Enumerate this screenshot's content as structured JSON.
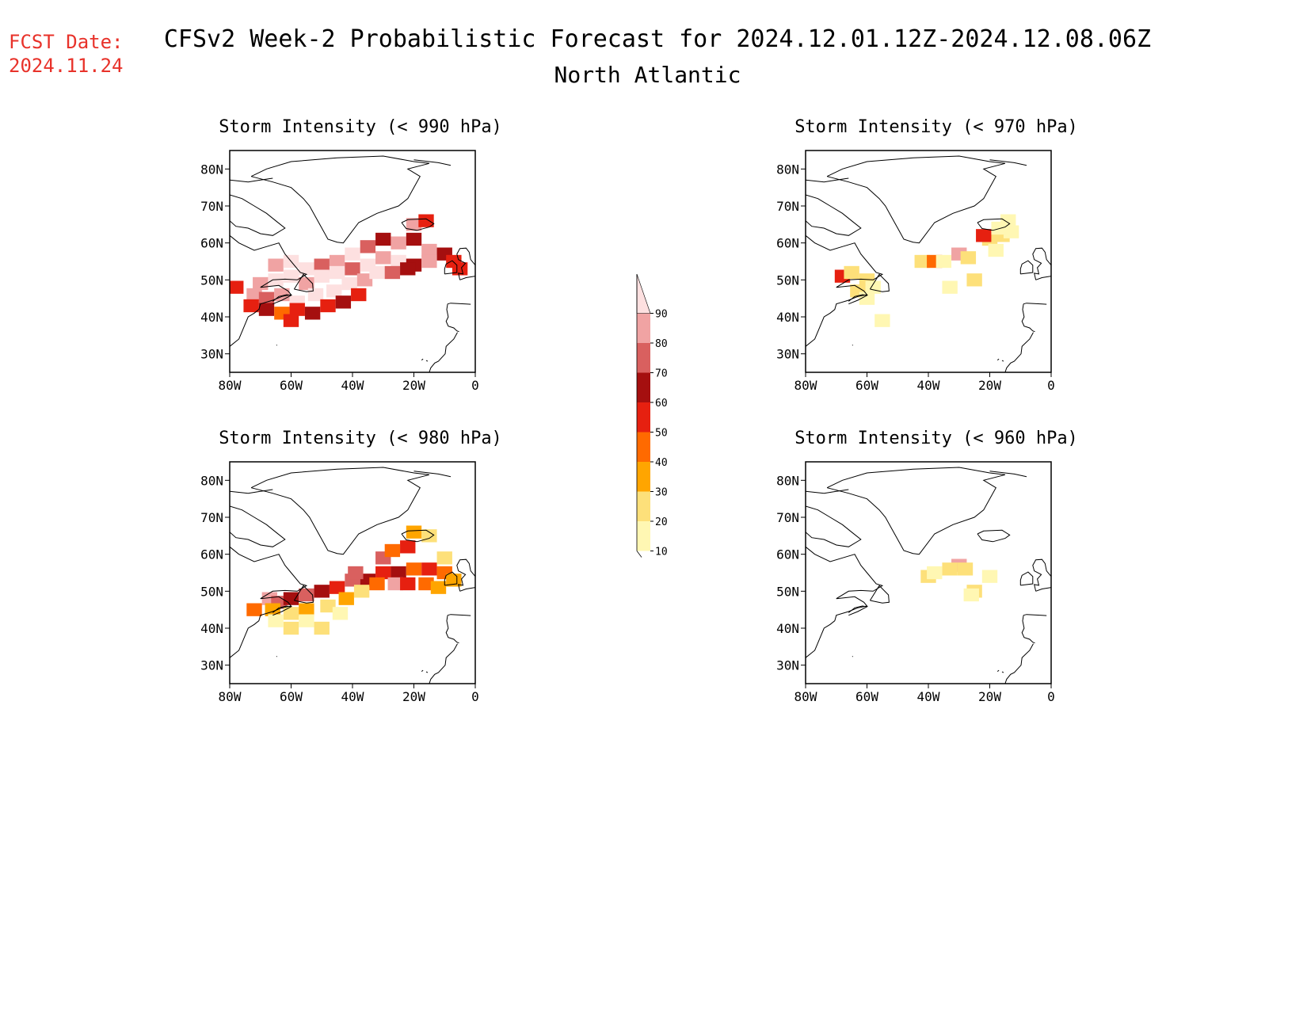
{
  "header": {
    "fcst_label": "FCST Date:",
    "fcst_date": "2024.11.24",
    "title": "CFSv2 Week-2 Probabilistic Forecast for 2024.12.01.12Z-2024.12.08.06Z",
    "subtitle": "North Atlantic"
  },
  "axes": {
    "lat_labels": [
      "80N",
      "70N",
      "60N",
      "50N",
      "40N",
      "30N"
    ],
    "lon_labels": [
      "80W",
      "60W",
      "40W",
      "20W",
      "0"
    ]
  },
  "panels": [
    {
      "title": "Storm Intensity (< 990 hPa)",
      "threshold": "990"
    },
    {
      "title": "Storm Intensity (< 970 hPa)",
      "threshold": "970"
    },
    {
      "title": "Storm Intensity (< 980 hPa)",
      "threshold": "980"
    },
    {
      "title": "Storm Intensity (< 960 hPa)",
      "threshold": "960"
    }
  ],
  "colorbar": {
    "levels": [
      "10",
      "20",
      "30",
      "40",
      "50",
      "60",
      "70",
      "80",
      "90"
    ],
    "colors": [
      "#fff7b3",
      "#fde07a",
      "#ffa500",
      "#ff6a00",
      "#e62010",
      "#a50f0f",
      "#d9605f",
      "#f0a3a3",
      "#fde0e0"
    ]
  },
  "colors": {
    "fcst_red": "#e8322a"
  }
}
